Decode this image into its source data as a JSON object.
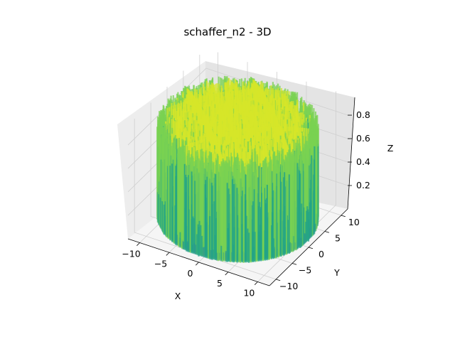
{
  "chart_data": {
    "type": "surface3d",
    "title": "schaffer_n2 - 3D",
    "function": "schaffer_n2",
    "xlabel": "X",
    "ylabel": "Y",
    "zlabel": "Z",
    "xlim": [
      -12,
      12
    ],
    "ylim": [
      -12,
      12
    ],
    "zlim": [
      0,
      0.97
    ],
    "xticks": [
      -10,
      -5,
      0,
      5,
      10
    ],
    "xtick_labels": [
      "−10",
      "−5",
      "0",
      "5",
      "10"
    ],
    "yticks": [
      -10,
      -5,
      0,
      5,
      10
    ],
    "ytick_labels": [
      "−10",
      "−5",
      "0",
      "5",
      "10"
    ],
    "zticks": [
      0.2,
      0.4,
      0.6,
      0.8
    ],
    "ztick_labels": [
      "0.2",
      "0.4",
      "0.6",
      "0.8"
    ],
    "domain_radius": 12,
    "grid": true,
    "colormap": "viridis",
    "colors": {
      "pane_left": "#ededed",
      "pane_right": "#e4e4e4",
      "pane_floor": "#f5f5f5",
      "surface_main": "#23a487",
      "surface_low": "#2c9a8c",
      "surface_high": "#7ad151",
      "surface_peak": "#d6e62a"
    }
  }
}
